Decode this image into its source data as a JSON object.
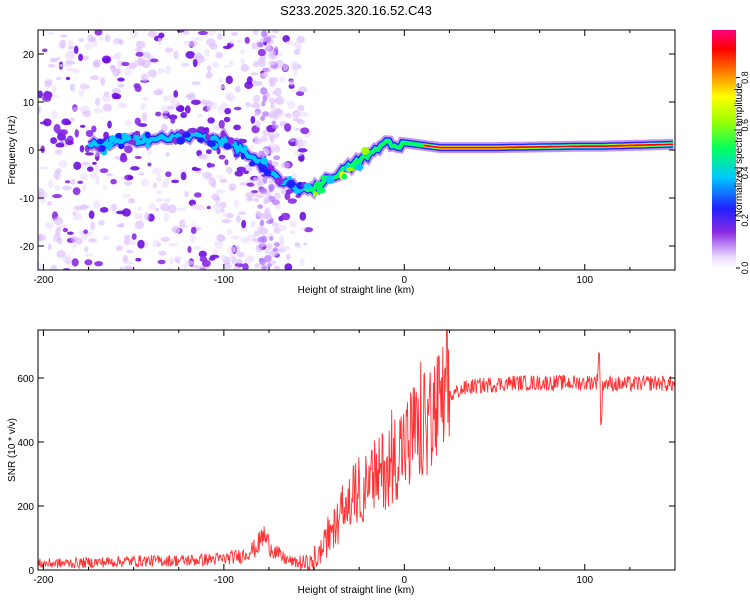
{
  "title": "S233.2025.320.16.52.C43",
  "chart_data": [
    {
      "type": "heatmap",
      "xlabel": "Height of straight line (km)",
      "ylabel": "Frequency (Hz)",
      "xlim": [
        -203,
        150
      ],
      "ylim": [
        -25,
        25
      ],
      "xticks": [
        -200,
        -100,
        0,
        100
      ],
      "xtick_labels": [
        "-200",
        "-100",
        "0",
        "100"
      ],
      "yticks": [
        20,
        10,
        0,
        -10,
        -20
      ],
      "ytick_labels": [
        "20",
        "10",
        "0",
        "-10",
        "-20"
      ],
      "ridge_line": {
        "x": [
          -170,
          -150,
          -130,
          -115,
          -100,
          -90,
          -80,
          -70,
          -60,
          -50,
          -42,
          -35,
          -28,
          -22,
          -15,
          -10,
          -5,
          0,
          10,
          20,
          50,
          100,
          110,
          150
        ],
        "y": [
          1,
          2,
          2.5,
          3,
          2,
          0,
          -3,
          -6,
          -8,
          -8,
          -6,
          -4.5,
          -3,
          -1.5,
          0,
          2,
          0.5,
          1.5,
          1,
          0.5,
          0.5,
          0.8,
          0.8,
          1.2
        ]
      },
      "colorbar": {
        "label": "Normalized spectral amplitude",
        "range": [
          0,
          1
        ],
        "ticks": [
          0.0,
          0.2,
          0.4,
          0.6,
          0.8
        ],
        "tick_labels": [
          "0.0",
          "0.2",
          "0.4",
          "0.6",
          "0.8"
        ]
      }
    },
    {
      "type": "line",
      "xlabel": "Height of straight line (km)",
      "ylabel": "SNR (10 * v/v)",
      "xlim": [
        -203,
        150
      ],
      "ylim": [
        0,
        750
      ],
      "xticks": [
        -200,
        -100,
        0,
        100
      ],
      "xtick_labels": [
        "-200",
        "-100",
        "0",
        "100"
      ],
      "yticks": [
        0,
        200,
        400,
        600
      ],
      "ytick_labels": [
        "0",
        "200",
        "400",
        "600"
      ],
      "series": [
        {
          "name": "SNR",
          "color": "#ff3333",
          "x": [
            -203,
            -180,
            -150,
            -120,
            -100,
            -90,
            -82,
            -78,
            -75,
            -72,
            -68,
            -62,
            -56,
            -50,
            -45,
            -40,
            -35,
            -30,
            -25,
            -20,
            -15,
            -10,
            -5,
            0,
            5,
            10,
            15,
            20,
            25,
            30,
            35,
            40,
            50,
            60,
            80,
            100,
            107,
            108,
            109,
            110,
            120,
            140,
            150
          ],
          "y": [
            20,
            22,
            28,
            30,
            35,
            45,
            70,
            110,
            80,
            60,
            40,
            25,
            20,
            22,
            70,
            120,
            170,
            220,
            250,
            260,
            300,
            320,
            360,
            390,
            420,
            440,
            470,
            510,
            540,
            560,
            570,
            575,
            580,
            585,
            585,
            585,
            590,
            720,
            420,
            585,
            580,
            585,
            580
          ]
        }
      ]
    }
  ]
}
